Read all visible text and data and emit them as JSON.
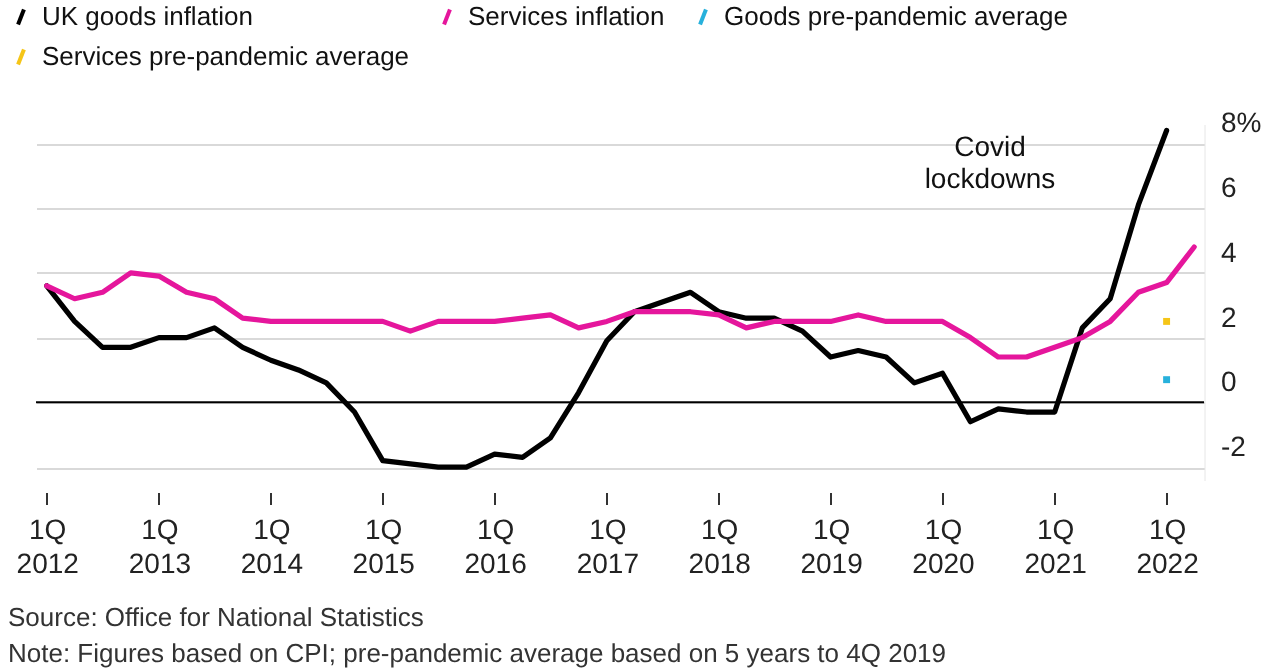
{
  "chart_data": {
    "type": "line",
    "x": [
      "2012-01",
      "2012-04",
      "2012-07",
      "2012-10",
      "2013-01",
      "2013-04",
      "2013-07",
      "2013-10",
      "2014-01",
      "2014-04",
      "2014-07",
      "2014-10",
      "2015-01",
      "2015-04",
      "2015-07",
      "2015-10",
      "2016-01",
      "2016-04",
      "2016-07",
      "2016-10",
      "2017-01",
      "2017-04",
      "2017-07",
      "2017-10",
      "2018-01",
      "2018-04",
      "2018-07",
      "2018-10",
      "2019-01",
      "2019-04",
      "2019-07",
      "2019-10",
      "2020-01",
      "2020-04",
      "2020-07",
      "2020-10",
      "2021-01",
      "2021-04",
      "2021-07",
      "2021-10",
      "2022-01",
      "2022-04"
    ],
    "series": [
      {
        "name": "UK goods inflation",
        "color": "#000000",
        "values": [
          3.6,
          2.5,
          1.7,
          1.7,
          2.0,
          2.0,
          2.3,
          1.7,
          1.3,
          1.0,
          0.6,
          -0.3,
          -1.8,
          -1.9,
          -2.0,
          -2.0,
          -1.6,
          -1.7,
          -1.1,
          0.3,
          1.9,
          2.8,
          3.1,
          3.4,
          2.8,
          2.6,
          2.6,
          2.2,
          1.4,
          1.6,
          1.4,
          0.6,
          0.9,
          -0.6,
          -0.2,
          -0.3,
          -0.3,
          2.3,
          3.2,
          6.1,
          8.4,
          null
        ]
      },
      {
        "name": "Services inflation",
        "color": "#e5169c",
        "values": [
          3.6,
          3.2,
          3.4,
          4.0,
          3.9,
          3.4,
          3.2,
          2.6,
          2.5,
          2.5,
          2.5,
          2.5,
          2.5,
          2.2,
          2.5,
          2.5,
          2.5,
          2.6,
          2.7,
          2.3,
          2.5,
          2.8,
          2.8,
          2.8,
          2.7,
          2.3,
          2.5,
          2.5,
          2.5,
          2.7,
          2.5,
          2.5,
          2.5,
          2.0,
          1.4,
          1.4,
          1.7,
          2.0,
          2.5,
          3.4,
          3.7,
          4.8
        ]
      },
      {
        "name": "Goods pre-pandemic average",
        "type": "scatter",
        "marker": "square",
        "color": "#27b1dc",
        "x": [
          "2022-01"
        ],
        "values": [
          0.7
        ]
      },
      {
        "name": "Services pre-pandemic average",
        "type": "scatter",
        "marker": "square",
        "color": "#f5c518",
        "x": [
          "2022-01"
        ],
        "values": [
          2.5
        ]
      }
    ],
    "xlim": [
      "2011-11-27",
      "2022-05-03"
    ],
    "xticks": [
      {
        "value": "2012-01",
        "label": "1Q 2012"
      },
      {
        "value": "2013-01",
        "label": "1Q 2013"
      },
      {
        "value": "2014-01",
        "label": "1Q 2014"
      },
      {
        "value": "2015-01",
        "label": "1Q 2015"
      },
      {
        "value": "2016-01",
        "label": "1Q 2016"
      },
      {
        "value": "2017-01",
        "label": "1Q 2017"
      },
      {
        "value": "2018-01",
        "label": "1Q 2018"
      },
      {
        "value": "2019-01",
        "label": "1Q 2019"
      },
      {
        "value": "2020-01",
        "label": "1Q 2020"
      },
      {
        "value": "2021-01",
        "label": "1Q 2021"
      },
      {
        "value": "2022-01",
        "label": "1Q 2022"
      }
    ],
    "ylim": [
      -2.4,
      8.6
    ],
    "yticks": [
      -2,
      0,
      2,
      4,
      6,
      {
        "value": 8,
        "label": "8%"
      }
    ],
    "grid": "y",
    "legend": "top left",
    "line_style": "solid",
    "ref_lines": [
      {
        "axis": "y",
        "value": 0,
        "color": "#000000"
      }
    ],
    "annotations": [
      "Covid lockdowns",
      "Source: Office for National Statistics",
      "Note: Figures based on CPI; pre-pandemic average based on 5 years to 4Q 2019"
    ]
  }
}
